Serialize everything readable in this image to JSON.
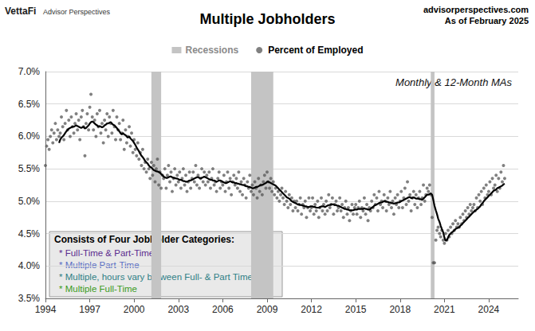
{
  "chart_data": {
    "type": "scatter",
    "title": "Multiple Jobholders",
    "brand": "VettaFi",
    "brand_sub": "Advisor Perspectives",
    "source": "advisorperspectives.com",
    "as_of": "As of February 2025",
    "annotation": "Monthly & 12-Month MAs",
    "notes_title": "Consists of Four Jobholder Categories:",
    "notes": [
      {
        "text": "* Full-Time & Part-Time",
        "color": "#5b2c8f"
      },
      {
        "text": "* Multiple Part-Time",
        "color": "#5b6fc4"
      },
      {
        "text": "* Multiple, hours vary between Full- & Part Time",
        "color": "#2e7f86"
      },
      {
        "text": "* Multiple Full-Time",
        "color": "#3b9b22"
      }
    ],
    "recessions": {
      "name": "Recessions",
      "color": "#c4c4c4",
      "ranges": [
        [
          2001.17,
          2001.83
        ],
        [
          2007.92,
          2009.42
        ],
        [
          2020.08,
          2020.33
        ]
      ]
    },
    "xlim": [
      1994,
      2026
    ],
    "xticks": [
      1994,
      1997,
      2000,
      2003,
      2006,
      2009,
      2012,
      2015,
      2018,
      2021,
      2024
    ],
    "ylim": [
      3.5,
      7.0
    ],
    "yticks": [
      {
        "value": 3.5,
        "label": "3.5%"
      },
      {
        "value": 4.0,
        "label": "4.0%"
      },
      {
        "value": 4.5,
        "label": "4.5%"
      },
      {
        "value": 5.0,
        "label": "5.0%"
      },
      {
        "value": 5.5,
        "label": "5.5%"
      },
      {
        "value": 6.0,
        "label": "6.0%"
      },
      {
        "value": 6.5,
        "label": "6.5%"
      },
      {
        "value": 7.0,
        "label": "7.0%"
      }
    ],
    "grid": true,
    "x": [
      1994,
      1994.08,
      1994.17,
      1994.25,
      1994.33,
      1994.42,
      1994.5,
      1994.58,
      1994.67,
      1994.75,
      1994.83,
      1994.92,
      1995,
      1995.08,
      1995.17,
      1995.25,
      1995.33,
      1995.42,
      1995.5,
      1995.58,
      1995.67,
      1995.75,
      1995.83,
      1995.92,
      1996,
      1996.08,
      1996.17,
      1996.25,
      1996.33,
      1996.42,
      1996.5,
      1996.58,
      1996.67,
      1996.75,
      1996.83,
      1996.92,
      1997,
      1997.08,
      1997.17,
      1997.25,
      1997.33,
      1997.42,
      1997.5,
      1997.58,
      1997.67,
      1997.75,
      1997.83,
      1997.92,
      1998,
      1998.08,
      1998.17,
      1998.25,
      1998.33,
      1998.42,
      1998.5,
      1998.58,
      1998.67,
      1998.75,
      1998.83,
      1998.92,
      1999,
      1999.08,
      1999.17,
      1999.25,
      1999.33,
      1999.42,
      1999.5,
      1999.58,
      1999.67,
      1999.75,
      1999.83,
      1999.92,
      2000,
      2000.08,
      2000.17,
      2000.25,
      2000.33,
      2000.42,
      2000.5,
      2000.58,
      2000.67,
      2000.75,
      2000.83,
      2000.92,
      2001,
      2001.08,
      2001.17,
      2001.25,
      2001.33,
      2001.42,
      2001.5,
      2001.58,
      2001.67,
      2001.75,
      2001.83,
      2001.92,
      2002,
      2002.08,
      2002.17,
      2002.25,
      2002.33,
      2002.42,
      2002.5,
      2002.58,
      2002.67,
      2002.75,
      2002.83,
      2002.92,
      2003,
      2003.08,
      2003.17,
      2003.25,
      2003.33,
      2003.42,
      2003.5,
      2003.58,
      2003.67,
      2003.75,
      2003.83,
      2003.92,
      2004,
      2004.08,
      2004.17,
      2004.25,
      2004.33,
      2004.42,
      2004.5,
      2004.58,
      2004.67,
      2004.75,
      2004.83,
      2004.92,
      2005,
      2005.08,
      2005.17,
      2005.25,
      2005.33,
      2005.42,
      2005.5,
      2005.58,
      2005.67,
      2005.75,
      2005.83,
      2005.92,
      2006,
      2006.08,
      2006.17,
      2006.25,
      2006.33,
      2006.42,
      2006.5,
      2006.58,
      2006.67,
      2006.75,
      2006.83,
      2006.92,
      2007,
      2007.08,
      2007.17,
      2007.25,
      2007.33,
      2007.42,
      2007.5,
      2007.58,
      2007.67,
      2007.75,
      2007.83,
      2007.92,
      2008,
      2008.08,
      2008.17,
      2008.25,
      2008.33,
      2008.42,
      2008.5,
      2008.58,
      2008.67,
      2008.75,
      2008.83,
      2008.92,
      2009,
      2009.08,
      2009.17,
      2009.25,
      2009.33,
      2009.42,
      2009.5,
      2009.58,
      2009.67,
      2009.75,
      2009.83,
      2009.92,
      2010,
      2010.08,
      2010.17,
      2010.25,
      2010.33,
      2010.42,
      2010.5,
      2010.58,
      2010.67,
      2010.75,
      2010.83,
      2010.92,
      2011,
      2011.08,
      2011.17,
      2011.25,
      2011.33,
      2011.42,
      2011.5,
      2011.58,
      2011.67,
      2011.75,
      2011.83,
      2011.92,
      2012,
      2012.08,
      2012.17,
      2012.25,
      2012.33,
      2012.42,
      2012.5,
      2012.58,
      2012.67,
      2012.75,
      2012.83,
      2012.92,
      2013,
      2013.08,
      2013.17,
      2013.25,
      2013.33,
      2013.42,
      2013.5,
      2013.58,
      2013.67,
      2013.75,
      2013.83,
      2013.92,
      2014,
      2014.08,
      2014.17,
      2014.25,
      2014.33,
      2014.42,
      2014.5,
      2014.58,
      2014.67,
      2014.75,
      2014.83,
      2014.92,
      2015,
      2015.08,
      2015.17,
      2015.25,
      2015.33,
      2015.42,
      2015.5,
      2015.58,
      2015.67,
      2015.75,
      2015.83,
      2015.92,
      2016,
      2016.08,
      2016.17,
      2016.25,
      2016.33,
      2016.42,
      2016.5,
      2016.58,
      2016.67,
      2016.75,
      2016.83,
      2016.92,
      2017,
      2017.08,
      2017.17,
      2017.25,
      2017.33,
      2017.42,
      2017.5,
      2017.58,
      2017.67,
      2017.75,
      2017.83,
      2017.92,
      2018,
      2018.08,
      2018.17,
      2018.25,
      2018.33,
      2018.42,
      2018.5,
      2018.58,
      2018.67,
      2018.75,
      2018.83,
      2018.92,
      2019,
      2019.08,
      2019.17,
      2019.25,
      2019.33,
      2019.42,
      2019.5,
      2019.58,
      2019.67,
      2019.75,
      2019.83,
      2019.92,
      2020,
      2020.08,
      2020.17,
      2020.25,
      2020.33,
      2020.42,
      2020.5,
      2020.58,
      2020.67,
      2020.75,
      2020.83,
      2020.92,
      2021,
      2021.08,
      2021.17,
      2021.25,
      2021.33,
      2021.42,
      2021.5,
      2021.58,
      2021.67,
      2021.75,
      2021.83,
      2021.92,
      2022,
      2022.08,
      2022.17,
      2022.25,
      2022.33,
      2022.42,
      2022.5,
      2022.58,
      2022.67,
      2022.75,
      2022.83,
      2022.92,
      2023,
      2023.08,
      2023.17,
      2023.25,
      2023.33,
      2023.42,
      2023.5,
      2023.58,
      2023.67,
      2023.75,
      2023.83,
      2023.92,
      2024,
      2024.08,
      2024.17,
      2024.25,
      2024.33,
      2024.42,
      2024.5,
      2024.58,
      2024.67,
      2024.75,
      2024.83,
      2024.92,
      2025,
      2025.08
    ],
    "series": [
      {
        "name": "Percent of Employed",
        "type": "scatter",
        "color": "#555555",
        "marker": "circle",
        "values": [
          5.55,
          5.85,
          5.95,
          5.8,
          6.0,
          6.1,
          5.9,
          6.05,
          6.2,
          5.95,
          6.1,
          6.0,
          6.05,
          6.3,
          6.15,
          5.95,
          6.2,
          6.4,
          6.1,
          6.25,
          6.0,
          6.3,
          6.15,
          6.05,
          6.2,
          6.35,
          6.1,
          6.25,
          5.95,
          6.3,
          6.4,
          6.15,
          5.7,
          6.2,
          6.35,
          6.1,
          6.45,
          6.65,
          6.3,
          6.1,
          6.25,
          6.0,
          6.35,
          6.15,
          6.4,
          6.05,
          6.2,
          5.9,
          6.25,
          6.1,
          6.35,
          6.0,
          6.3,
          6.2,
          6.05,
          6.4,
          6.15,
          5.95,
          6.3,
          6.1,
          6.2,
          5.95,
          6.05,
          6.25,
          5.8,
          6.1,
          5.9,
          6.0,
          6.15,
          5.85,
          6.05,
          5.75,
          5.95,
          5.8,
          5.7,
          5.9,
          5.65,
          5.75,
          5.55,
          5.8,
          5.5,
          5.6,
          5.45,
          5.65,
          5.5,
          5.35,
          5.6,
          5.4,
          5.55,
          5.3,
          5.5,
          5.65,
          5.25,
          5.45,
          5.2,
          5.4,
          5.35,
          5.5,
          5.2,
          5.4,
          5.55,
          5.3,
          5.45,
          5.15,
          5.35,
          5.5,
          5.25,
          5.4,
          5.3,
          5.45,
          5.2,
          5.35,
          5.5,
          5.25,
          5.4,
          5.15,
          5.3,
          5.45,
          5.2,
          5.35,
          5.45,
          5.3,
          5.55,
          5.25,
          5.4,
          5.2,
          5.35,
          5.5,
          5.3,
          5.45,
          5.25,
          5.4,
          5.3,
          5.45,
          5.2,
          5.35,
          5.5,
          5.25,
          5.3,
          5.15,
          5.35,
          5.45,
          5.2,
          5.3,
          5.25,
          5.4,
          5.15,
          5.3,
          5.45,
          5.2,
          5.35,
          5.1,
          5.3,
          5.4,
          5.25,
          5.35,
          5.2,
          5.45,
          5.15,
          5.3,
          5.1,
          5.35,
          5.25,
          5.05,
          5.3,
          5.2,
          5.4,
          5.15,
          5.25,
          5.1,
          5.3,
          5.2,
          5.05,
          5.35,
          5.15,
          5.25,
          5.1,
          5.3,
          5.4,
          5.2,
          5.45,
          5.3,
          5.2,
          5.35,
          5.15,
          5.3,
          5.1,
          5.2,
          5.05,
          5.15,
          5.0,
          5.1,
          5.2,
          5.05,
          4.95,
          5.15,
          5.0,
          4.9,
          5.1,
          4.95,
          5.05,
          4.85,
          5.0,
          4.9,
          5.0,
          4.85,
          4.95,
          5.05,
          4.8,
          4.95,
          4.9,
          5.0,
          4.75,
          4.9,
          5.05,
          4.85,
          4.9,
          5.05,
          4.8,
          4.95,
          4.85,
          5.0,
          4.75,
          4.9,
          5.05,
          4.85,
          4.95,
          4.8,
          5.0,
          4.85,
          5.1,
          4.9,
          4.95,
          5.05,
          4.8,
          4.95,
          5.0,
          4.85,
          4.9,
          5.05,
          4.85,
          4.95,
          4.75,
          4.9,
          5.0,
          4.8,
          4.9,
          4.7,
          4.85,
          4.95,
          4.8,
          4.9,
          4.95,
          4.8,
          4.9,
          5.0,
          4.75,
          4.9,
          4.85,
          5.05,
          4.8,
          4.95,
          4.7,
          4.9,
          4.85,
          5.0,
          4.9,
          5.1,
          4.95,
          5.05,
          4.85,
          5.15,
          4.95,
          5.0,
          4.9,
          5.1,
          5.0,
          4.85,
          5.05,
          4.95,
          5.15,
          4.9,
          5.0,
          4.8,
          5.05,
          4.95,
          5.1,
          4.9,
          5.0,
          5.15,
          4.9,
          5.05,
          5.2,
          4.95,
          5.3,
          5.0,
          5.1,
          4.85,
          5.05,
          5.15,
          4.95,
          5.1,
          4.9,
          5.05,
          5.15,
          4.95,
          5.05,
          5.25,
          5.0,
          5.1,
          5.2,
          5.15,
          5.25,
          5.1,
          4.75,
          4.05,
          4.05,
          4.4,
          4.55,
          4.6,
          4.5,
          4.45,
          4.55,
          4.4,
          4.35,
          4.5,
          4.4,
          4.55,
          4.45,
          4.6,
          4.5,
          4.65,
          4.55,
          4.7,
          4.6,
          4.65,
          4.6,
          4.75,
          4.65,
          4.8,
          4.7,
          4.85,
          4.75,
          4.9,
          4.8,
          4.95,
          4.85,
          4.9,
          4.95,
          4.85,
          5.05,
          4.9,
          5.1,
          5.0,
          5.15,
          4.95,
          5.2,
          5.05,
          5.25,
          5.1,
          5.15,
          5.3,
          5.1,
          5.35,
          5.2,
          5.25,
          5.4,
          5.15,
          5.35,
          5.2,
          5.45,
          5.3,
          5.55,
          5.35
        ]
      },
      {
        "type": "line",
        "color": "#000000",
        "line_style": "solid",
        "values": [
          null,
          null,
          null,
          null,
          null,
          null,
          null,
          null,
          null,
          null,
          null,
          5.9,
          5.95,
          5.98,
          6.0,
          6.02,
          6.05,
          6.08,
          6.1,
          6.12,
          6.13,
          6.14,
          6.15,
          6.15,
          6.16,
          6.17,
          6.16,
          6.15,
          6.14,
          6.13,
          6.14,
          6.15,
          6.12,
          6.13,
          6.15,
          6.17,
          6.2,
          6.22,
          6.23,
          6.22,
          6.2,
          6.18,
          6.17,
          6.15,
          6.16,
          6.15,
          6.14,
          6.15,
          6.17,
          6.18,
          6.2,
          6.2,
          6.21,
          6.22,
          6.2,
          6.18,
          6.17,
          6.15,
          6.13,
          6.1,
          6.08,
          6.05,
          6.03,
          6.05,
          6.03,
          6.02,
          6.0,
          5.98,
          6.0,
          5.97,
          5.95,
          5.93,
          5.9,
          5.87,
          5.83,
          5.8,
          5.77,
          5.73,
          5.7,
          5.68,
          5.65,
          5.62,
          5.6,
          5.58,
          5.55,
          5.53,
          5.52,
          5.5,
          5.48,
          5.47,
          5.46,
          5.46,
          5.45,
          5.44,
          5.42,
          5.4,
          5.38,
          5.37,
          5.36,
          5.36,
          5.37,
          5.38,
          5.38,
          5.37,
          5.36,
          5.36,
          5.35,
          5.35,
          5.34,
          5.33,
          5.33,
          5.32,
          5.31,
          5.31,
          5.3,
          5.3,
          5.31,
          5.32,
          5.32,
          5.33,
          5.34,
          5.35,
          5.36,
          5.37,
          5.37,
          5.36,
          5.35,
          5.36,
          5.37,
          5.38,
          5.37,
          5.36,
          5.35,
          5.34,
          5.33,
          5.33,
          5.32,
          5.32,
          5.31,
          5.3,
          5.31,
          5.32,
          5.32,
          5.31,
          5.3,
          5.29,
          5.28,
          5.28,
          5.29,
          5.3,
          5.31,
          5.3,
          5.29,
          5.29,
          5.28,
          5.28,
          5.27,
          5.27,
          5.26,
          5.26,
          5.25,
          5.25,
          5.24,
          5.23,
          5.23,
          5.22,
          5.22,
          5.21,
          5.2,
          5.2,
          5.21,
          5.22,
          5.22,
          5.23,
          5.24,
          5.25,
          5.25,
          5.26,
          5.27,
          5.28,
          5.3,
          5.3,
          5.29,
          5.28,
          5.27,
          5.26,
          5.25,
          5.24,
          5.22,
          5.2,
          5.18,
          5.16,
          5.14,
          5.12,
          5.1,
          5.08,
          5.06,
          5.05,
          5.04,
          5.02,
          5.0,
          4.99,
          4.98,
          4.97,
          4.96,
          4.95,
          4.95,
          4.94,
          4.94,
          4.93,
          4.93,
          4.92,
          4.92,
          4.91,
          4.91,
          4.92,
          4.92,
          4.92,
          4.91,
          4.91,
          4.9,
          4.9,
          4.9,
          4.91,
          4.92,
          4.92,
          4.92,
          4.91,
          4.92,
          4.93,
          4.94,
          4.94,
          4.95,
          4.95,
          4.95,
          4.94,
          4.94,
          4.93,
          4.93,
          4.92,
          4.91,
          4.9,
          4.89,
          4.88,
          4.88,
          4.87,
          4.87,
          4.86,
          4.86,
          4.86,
          4.86,
          4.87,
          4.87,
          4.87,
          4.88,
          4.88,
          4.88,
          4.88,
          4.88,
          4.89,
          4.88,
          4.88,
          4.87,
          4.87,
          4.88,
          4.9,
          4.91,
          4.93,
          4.94,
          4.95,
          4.96,
          4.97,
          4.98,
          4.98,
          4.99,
          5.0,
          5.0,
          4.99,
          4.99,
          4.98,
          4.98,
          4.97,
          4.97,
          4.96,
          4.97,
          4.97,
          4.98,
          4.98,
          4.99,
          5.0,
          5.01,
          5.02,
          5.03,
          5.04,
          5.05,
          5.06,
          5.06,
          5.05,
          5.05,
          5.06,
          5.05,
          5.04,
          5.04,
          5.04,
          5.03,
          5.03,
          5.02,
          5.04,
          5.06,
          5.08,
          5.1,
          5.1,
          5.11,
          5.12,
          5.1,
          5.02,
          4.93,
          4.86,
          4.8,
          4.73,
          4.68,
          4.62,
          4.57,
          4.52,
          4.44,
          4.39,
          4.4,
          4.44,
          4.48,
          4.5,
          4.52,
          4.53,
          4.55,
          4.57,
          4.58,
          4.59,
          4.6,
          4.62,
          4.64,
          4.66,
          4.68,
          4.7,
          4.72,
          4.74,
          4.76,
          4.78,
          4.8,
          4.82,
          4.84,
          4.85,
          4.87,
          4.88,
          4.9,
          4.92,
          4.95,
          4.97,
          5.0,
          5.02,
          5.04,
          5.06,
          5.08,
          5.1,
          5.12,
          5.14,
          5.16,
          5.17,
          5.18,
          5.2,
          5.21,
          5.22,
          5.23,
          5.24,
          5.26,
          5.27
        ]
      }
    ]
  }
}
